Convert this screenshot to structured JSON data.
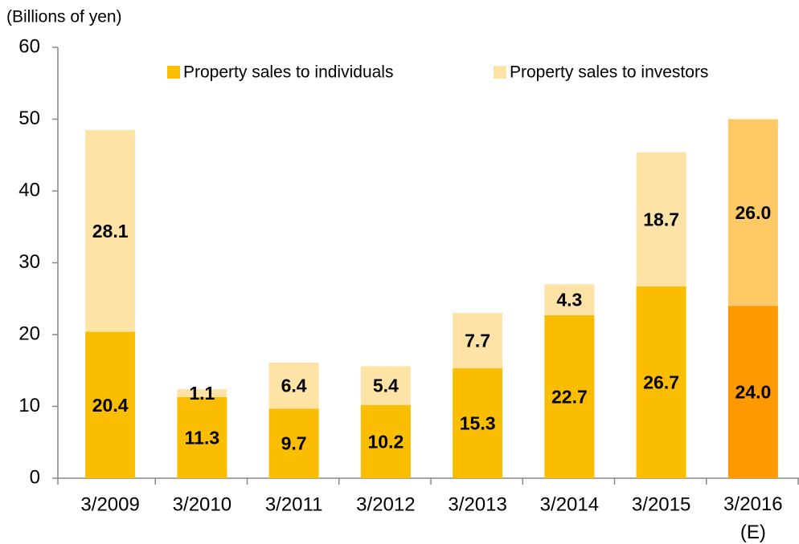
{
  "chart_data": {
    "type": "stacked_bar",
    "y_axis_label": "(Billions of yen)",
    "categories": [
      "3/2009",
      "3/2010",
      "3/2011",
      "3/2012",
      "3/2013",
      "3/2014",
      "3/2015",
      "3/2016\n(E)"
    ],
    "series": [
      {
        "name": "Property sales to individuals",
        "color": "#fbbd00",
        "colors": [
          "#fbbd00",
          "#fbbd00",
          "#fbbd00",
          "#fbbd00",
          "#fbbd00",
          "#fbbd00",
          "#fbbd00",
          "#ff9900"
        ],
        "values": [
          20.4,
          11.3,
          9.7,
          10.2,
          15.3,
          22.7,
          26.7,
          24.0
        ],
        "value_labels": [
          "20.4",
          "11.3",
          "9.7",
          "10.2",
          "15.3",
          "22.7",
          "26.7",
          "24.0"
        ]
      },
      {
        "name": "Property sales to investors",
        "color": "#fde3a6",
        "colors": [
          "#fde3a6",
          "#fde3a6",
          "#fde3a6",
          "#fde3a6",
          "#fde3a6",
          "#fde3a6",
          "#fde3a6",
          "#ffc966"
        ],
        "values": [
          28.1,
          1.1,
          6.4,
          5.4,
          7.7,
          4.3,
          18.7,
          26.0
        ],
        "value_labels": [
          "28.1",
          "1.1",
          "6.4",
          "5.4",
          "7.7",
          "4.3",
          "18.7",
          "26.0"
        ]
      }
    ],
    "ylim": [
      0,
      60
    ],
    "yticks": [
      0,
      10,
      20,
      30,
      40,
      50,
      60
    ],
    "grid": false,
    "legend": "top"
  }
}
